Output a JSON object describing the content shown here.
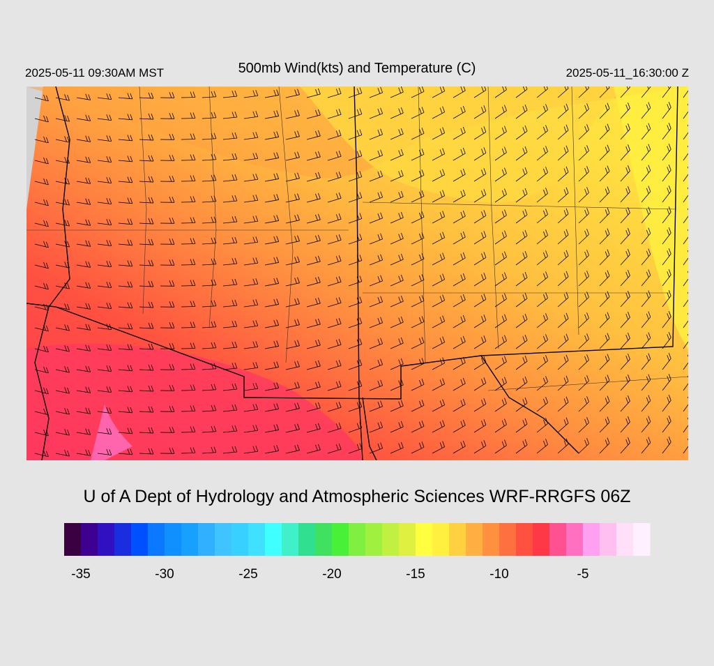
{
  "header": {
    "local_time": "2025-05-11 09:30AM MST",
    "title": "500mb Wind(kts) and Temperature (C)",
    "utc_time": "2025-05-11_16:30:00 Z"
  },
  "credit": "U of A Dept of Hydrology and Atmospheric Sciences WRF-RRGFS 06Z",
  "colorbar": {
    "range": [
      -36,
      -1
    ],
    "ticks": [
      -35,
      -30,
      -25,
      -20,
      -15,
      -10,
      -5
    ],
    "colors": [
      "#3a0040",
      "#3e0090",
      "#3010c0",
      "#1a2ee0",
      "#0050ff",
      "#0a78ff",
      "#1090ff",
      "#18a0ff",
      "#30b0ff",
      "#40c4ff",
      "#38d0ff",
      "#40e0ff",
      "#40ffff",
      "#40f0c8",
      "#30e090",
      "#40e060",
      "#48f038",
      "#80f040",
      "#a0f040",
      "#c0f040",
      "#e0f040",
      "#ffff40",
      "#fff040",
      "#ffd040",
      "#ffb040",
      "#ff9040",
      "#ff7040",
      "#ff5040",
      "#ff3848",
      "#ff5090",
      "#ff70c0",
      "#ffa0f0",
      "#ffc0f0",
      "#ffe0f8",
      "#fff0ff"
    ]
  }
}
